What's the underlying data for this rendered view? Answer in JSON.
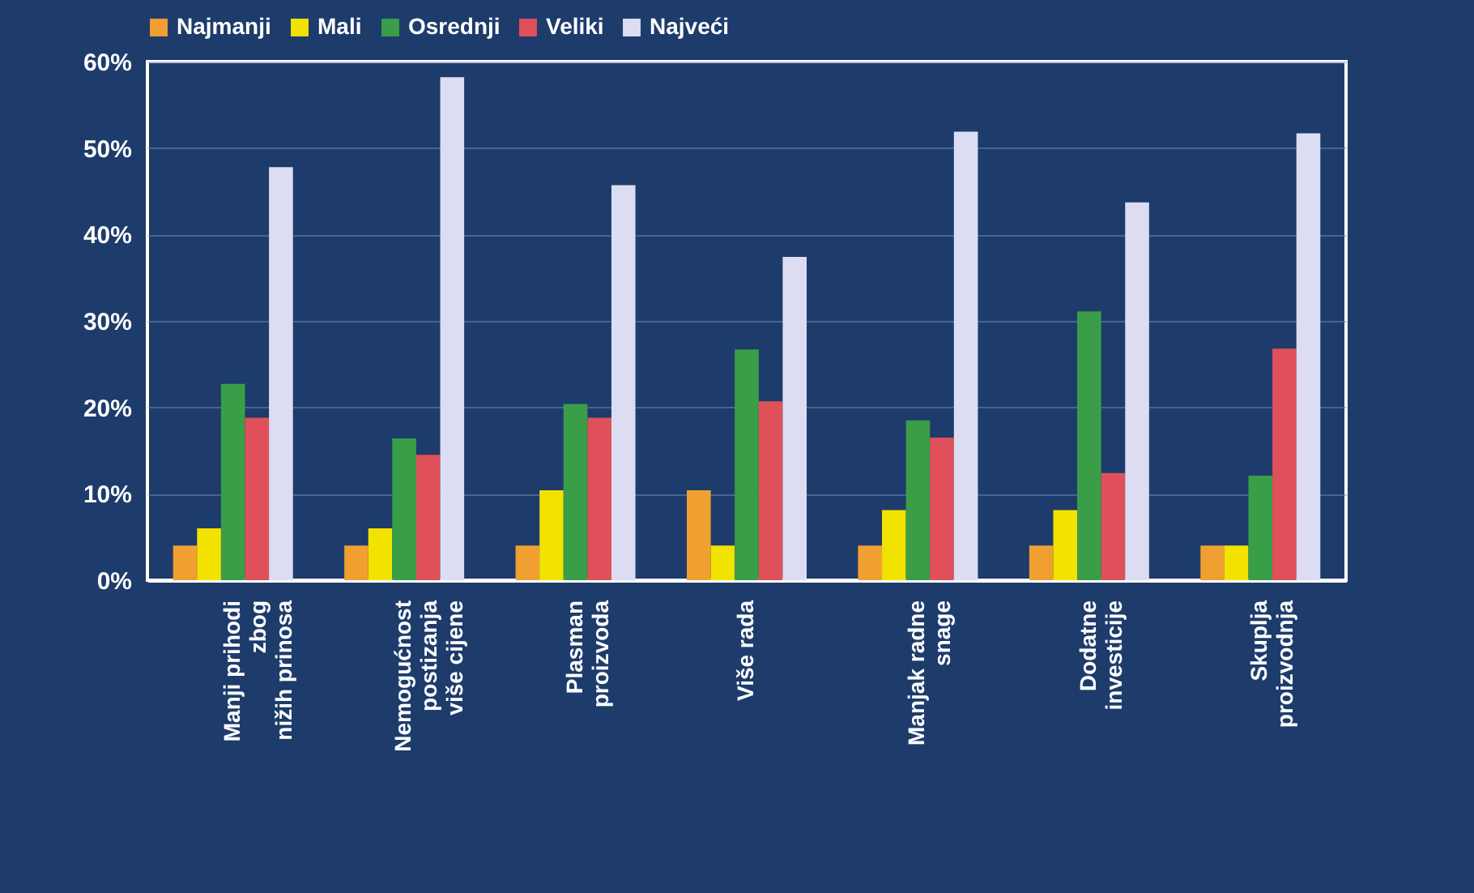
{
  "chart_data": {
    "type": "bar",
    "categories": [
      "Manji prihodi\nzbog\nnižih prinosa",
      "Nemogućnost\npostizanja\nviše cijene",
      "Plasman\nproizvoda",
      "Više rada",
      "Manjak radne\nsnage",
      "Dodatne\ninvesticije",
      "Skuplja\nproizvodnja"
    ],
    "series": [
      {
        "name": "Najmanji",
        "color": "#f0a030",
        "values": [
          4,
          4,
          4,
          10.4,
          4,
          4,
          4
        ]
      },
      {
        "name": "Mali",
        "color": "#f2e200",
        "values": [
          6,
          6,
          10.4,
          4,
          8.1,
          8.1,
          4
        ]
      },
      {
        "name": "Osrednji",
        "color": "#3a9e48",
        "values": [
          22.7,
          16.4,
          20.4,
          26.7,
          18.5,
          31.1,
          12.1
        ]
      },
      {
        "name": "Veliki",
        "color": "#e0505a",
        "values": [
          18.8,
          14.5,
          18.8,
          20.7,
          16.5,
          12.4,
          26.8
        ]
      },
      {
        "name": "Najveći",
        "color": "#dcdcf2",
        "values": [
          47.8,
          58.2,
          45.7,
          37.4,
          51.9,
          43.7,
          51.7
        ]
      }
    ],
    "ylim": [
      0,
      60
    ],
    "yticks": [
      {
        "value": 0,
        "label": "0%"
      },
      {
        "value": 10,
        "label": "10%"
      },
      {
        "value": 20,
        "label": "20%"
      },
      {
        "value": 30,
        "label": "30%"
      },
      {
        "value": 40,
        "label": "40%"
      },
      {
        "value": 50,
        "label": "50%"
      },
      {
        "value": 60,
        "label": "60%"
      }
    ],
    "grid": "y",
    "legend": "top"
  }
}
